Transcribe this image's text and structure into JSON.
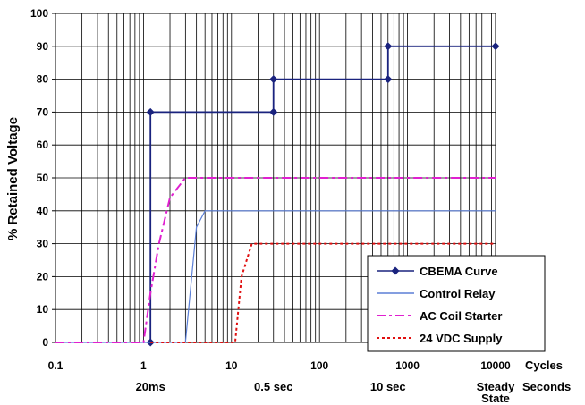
{
  "chart_data": {
    "type": "line",
    "ylabel": "% Retained Voltage",
    "x_scale": "log",
    "xlim": [
      0.1,
      10000
    ],
    "ylim": [
      0,
      100
    ],
    "y_ticks": [
      0,
      10,
      20,
      30,
      40,
      50,
      60,
      70,
      80,
      90,
      100
    ],
    "x_ticks": [
      0.1,
      1,
      10,
      100,
      1000,
      10000
    ],
    "x_tick_labels": [
      "0.1",
      "1",
      "10",
      "100",
      "1000",
      "10000"
    ],
    "x_unit_label": "Cycles",
    "seconds_unit_label": "Seconds",
    "seconds_markers": [
      {
        "cycles": 1.2,
        "label": "20ms"
      },
      {
        "cycles": 30,
        "label": "0.5 sec"
      },
      {
        "cycles": 600,
        "label": "10 sec"
      },
      {
        "cycles": 10000,
        "label": "Steady State"
      }
    ],
    "grid": true,
    "legend_position": "bottom-right",
    "series": [
      {
        "name": "CBEMA Curve",
        "color": "#1a237e",
        "style": "solid",
        "marker": "diamond",
        "points": [
          [
            1.2,
            0
          ],
          [
            1.2,
            70
          ],
          [
            30,
            70
          ],
          [
            30,
            80
          ],
          [
            600,
            80
          ],
          [
            600,
            90
          ],
          [
            10000,
            90
          ]
        ]
      },
      {
        "name": "Control Relay",
        "color": "#5b7fd6",
        "style": "solid",
        "marker": "none",
        "points": [
          [
            0.1,
            0
          ],
          [
            3,
            0
          ],
          [
            4,
            35
          ],
          [
            5,
            40
          ],
          [
            10000,
            40
          ]
        ]
      },
      {
        "name": "AC Coil Starter",
        "color": "#e020d0",
        "style": "dashdot",
        "marker": "none",
        "points": [
          [
            0.1,
            0
          ],
          [
            1,
            0
          ],
          [
            1.2,
            15
          ],
          [
            1.5,
            30
          ],
          [
            2,
            44
          ],
          [
            3,
            50
          ],
          [
            10000,
            50
          ]
        ]
      },
      {
        "name": "24 VDC Supply",
        "color": "#e01010",
        "style": "dotted",
        "marker": "none",
        "points": [
          [
            1.2,
            0
          ],
          [
            11,
            0
          ],
          [
            13,
            20
          ],
          [
            17,
            30
          ],
          [
            10000,
            30
          ]
        ]
      }
    ]
  }
}
